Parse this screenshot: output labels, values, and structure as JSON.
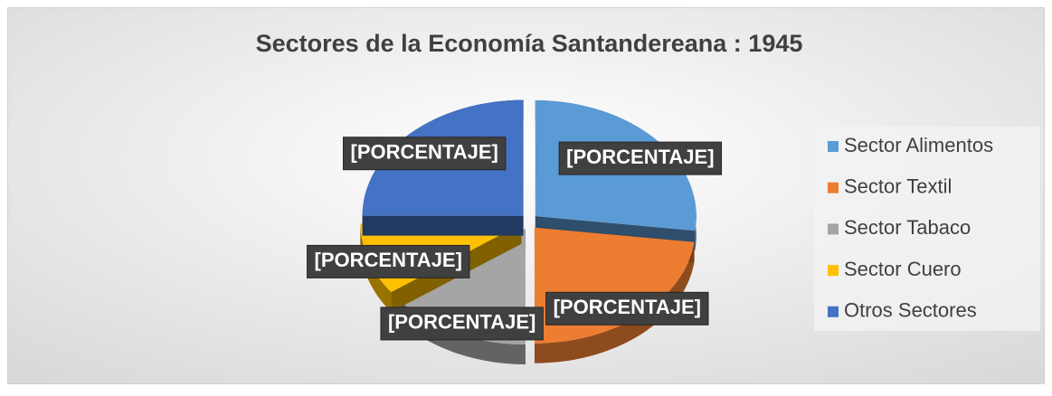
{
  "chart_data": {
    "type": "pie",
    "title": "Sectores de la Economía Santandereana : 1945",
    "categories": [
      "Sector Alimentos",
      "Sector Textil",
      "Sector Tabaco",
      "Sector Cuero",
      "Otros Sectores"
    ],
    "values": [
      27,
      23,
      15,
      10,
      25
    ],
    "value_labels": [
      "[PORCENTAJE]",
      "[PORCENTAJE]",
      "[PORCENTAJE]",
      "[PORCENTAJE]",
      "[PORCENTAJE]"
    ],
    "colors": [
      "#5b9bd5",
      "#ed7d31",
      "#a5a5a5",
      "#ffc000",
      "#4472c4"
    ],
    "legend": "right"
  }
}
